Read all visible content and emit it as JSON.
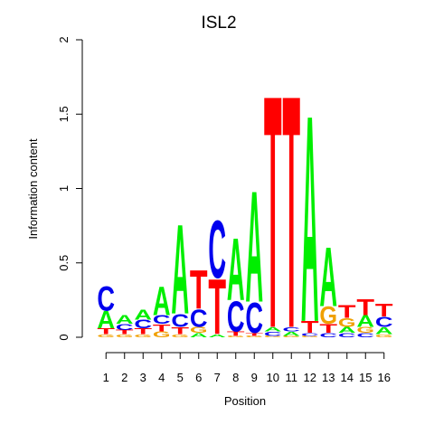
{
  "chart_data": {
    "type": "sequence-logo",
    "title": "ISL2",
    "xlabel": "Position",
    "ylabel": "Information content",
    "ylim": [
      0,
      2
    ],
    "y_ticks": [
      "0",
      "0.5",
      "1",
      "1.5",
      "2"
    ],
    "y_tick_values": [
      0,
      0.5,
      1,
      1.5,
      2
    ],
    "positions": [
      "1",
      "2",
      "3",
      "4",
      "5",
      "6",
      "7",
      "8",
      "9",
      "10",
      "11",
      "12",
      "13",
      "14",
      "15",
      "16"
    ],
    "colors": {
      "A": "#00ee00",
      "C": "#0000ee",
      "G": "#f0a000",
      "T": "#ff0000"
    },
    "columns": [
      [
        {
          "base": "G",
          "height": 0.02
        },
        {
          "base": "T",
          "height": 0.04
        },
        {
          "base": "A",
          "height": 0.12
        },
        {
          "base": "C",
          "height": 0.17
        }
      ],
      [
        {
          "base": "G",
          "height": 0.02
        },
        {
          "base": "T",
          "height": 0.03
        },
        {
          "base": "C",
          "height": 0.04
        },
        {
          "base": "A",
          "height": 0.06
        }
      ],
      [
        {
          "base": "G",
          "height": 0.02
        },
        {
          "base": "T",
          "height": 0.04
        },
        {
          "base": "C",
          "height": 0.06
        },
        {
          "base": "A",
          "height": 0.07
        }
      ],
      [
        {
          "base": "G",
          "height": 0.04
        },
        {
          "base": "T",
          "height": 0.05
        },
        {
          "base": "C",
          "height": 0.06
        },
        {
          "base": "A",
          "height": 0.2
        }
      ],
      [
        {
          "base": "G",
          "height": 0.02
        },
        {
          "base": "T",
          "height": 0.05
        },
        {
          "base": "C",
          "height": 0.09
        },
        {
          "base": "A",
          "height": 0.62
        }
      ],
      [
        {
          "base": "A",
          "height": 0.03
        },
        {
          "base": "G",
          "height": 0.04
        },
        {
          "base": "C",
          "height": 0.12
        },
        {
          "base": "T",
          "height": 0.27
        }
      ],
      [
        {
          "base": "A",
          "height": 0.02
        },
        {
          "base": "T",
          "height": 0.38
        },
        {
          "base": "C",
          "height": 0.4
        }
      ],
      [
        {
          "base": "G",
          "height": 0.01
        },
        {
          "base": "T",
          "height": 0.03
        },
        {
          "base": "C",
          "height": 0.21
        },
        {
          "base": "A",
          "height": 0.43
        }
      ],
      [
        {
          "base": "G",
          "height": 0.01
        },
        {
          "base": "T",
          "height": 0.02
        },
        {
          "base": "C",
          "height": 0.21
        },
        {
          "base": "A",
          "height": 0.77
        }
      ],
      [
        {
          "base": "G",
          "height": 0.01
        },
        {
          "base": "C",
          "height": 0.03
        },
        {
          "base": "A",
          "height": 0.03
        },
        {
          "base": "T",
          "height": 1.61
        }
      ],
      [
        {
          "base": "G",
          "height": 0.01
        },
        {
          "base": "A",
          "height": 0.03
        },
        {
          "base": "C",
          "height": 0.03
        },
        {
          "base": "T",
          "height": 1.61
        }
      ],
      [
        {
          "base": "G",
          "height": 0.01
        },
        {
          "base": "C",
          "height": 0.02
        },
        {
          "base": "T",
          "height": 0.08
        },
        {
          "base": "A",
          "height": 1.43
        }
      ],
      [
        {
          "base": "C",
          "height": 0.03
        },
        {
          "base": "T",
          "height": 0.06
        },
        {
          "base": "G",
          "height": 0.12
        },
        {
          "base": "A",
          "height": 0.41
        }
      ],
      [
        {
          "base": "C",
          "height": 0.03
        },
        {
          "base": "A",
          "height": 0.04
        },
        {
          "base": "G",
          "height": 0.06
        },
        {
          "base": "T",
          "height": 0.09
        }
      ],
      [
        {
          "base": "C",
          "height": 0.03
        },
        {
          "base": "G",
          "height": 0.04
        },
        {
          "base": "A",
          "height": 0.08
        },
        {
          "base": "T",
          "height": 0.11
        }
      ],
      [
        {
          "base": "G",
          "height": 0.02
        },
        {
          "base": "A",
          "height": 0.05
        },
        {
          "base": "C",
          "height": 0.07
        },
        {
          "base": "T",
          "height": 0.09
        }
      ]
    ]
  }
}
